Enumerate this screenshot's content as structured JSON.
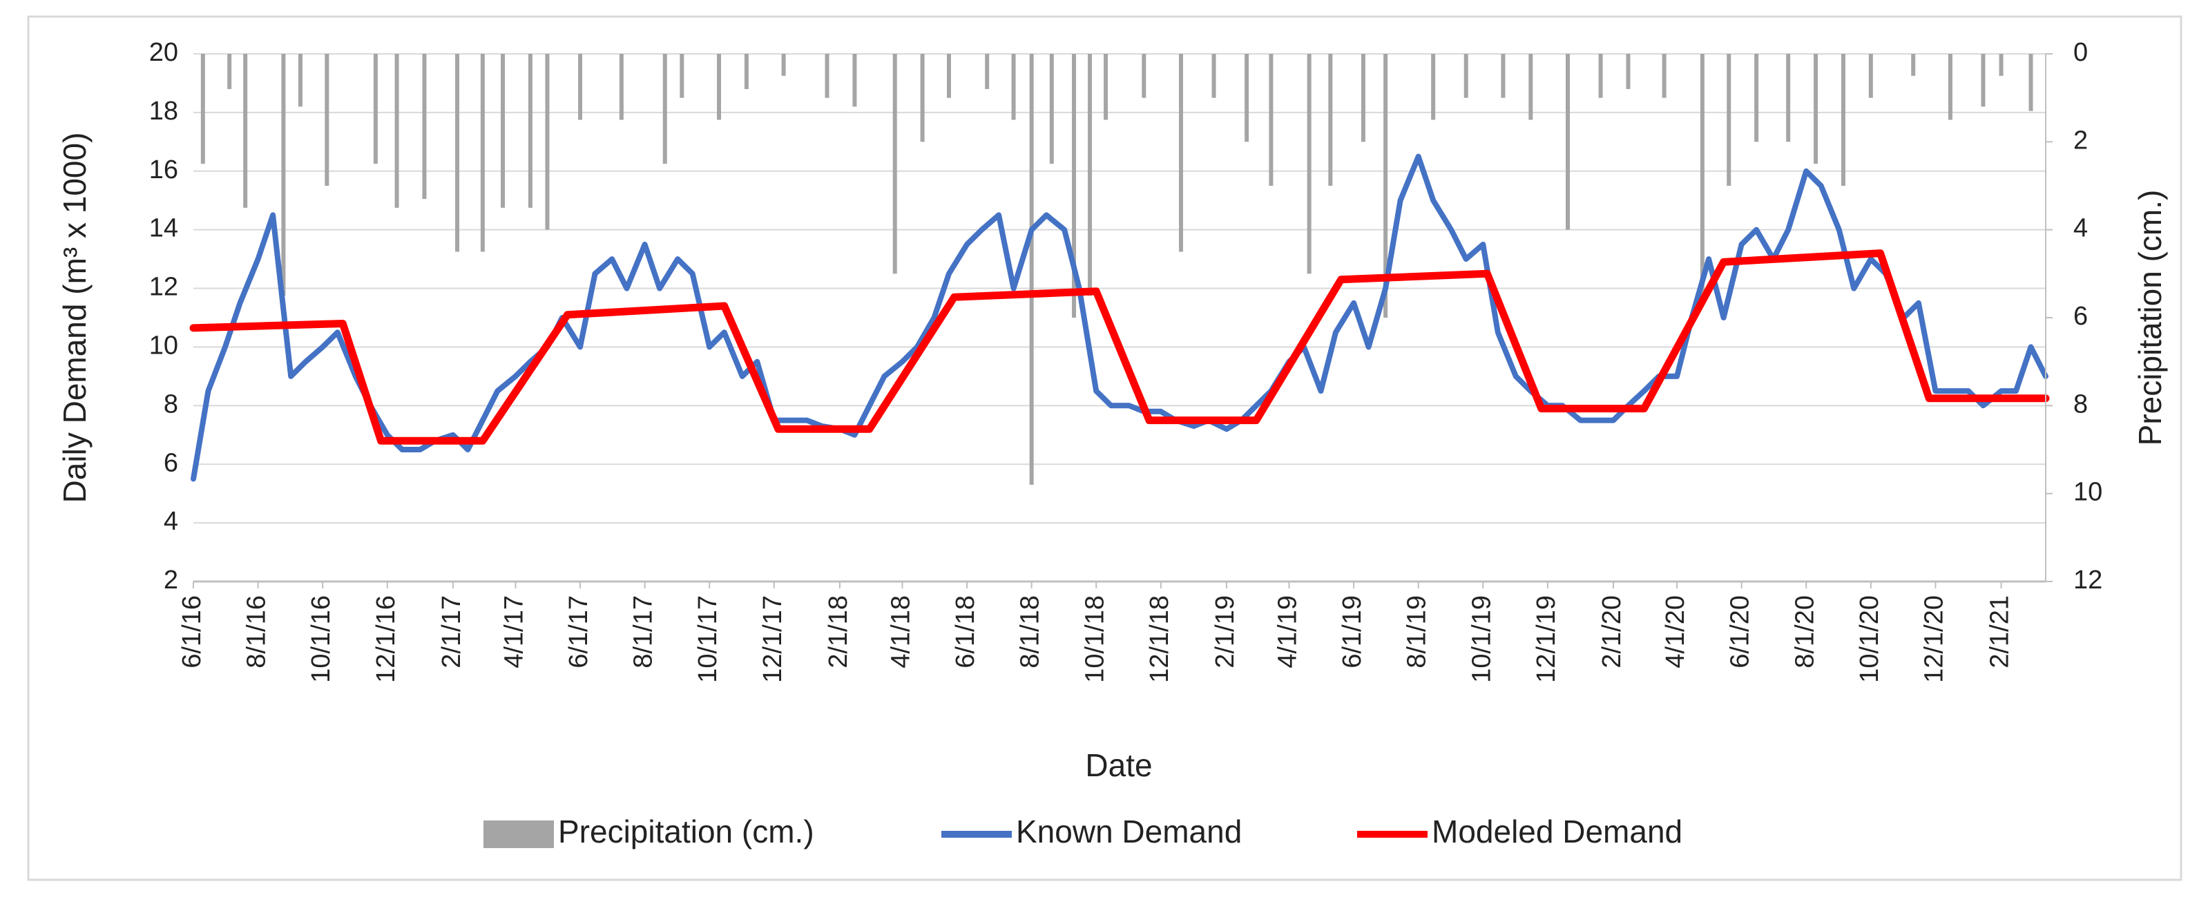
{
  "chart_data": {
    "type": "line",
    "x_label": "Date",
    "y_label": "Daily Demand (m³ x 1000)",
    "y2_label": "Precipitation (cm.)",
    "xlim": [
      "6/1/16",
      "3/15/21"
    ],
    "xticks": [
      "6/1/16",
      "8/1/16",
      "10/1/16",
      "12/1/16",
      "2/1/17",
      "4/1/17",
      "6/1/17",
      "8/1/17",
      "10/1/17",
      "12/1/17",
      "2/1/18",
      "4/1/18",
      "6/1/18",
      "8/1/18",
      "10/1/18",
      "12/1/18",
      "2/1/19",
      "4/1/19",
      "6/1/19",
      "8/1/19",
      "10/1/19",
      "12/1/19",
      "2/1/20",
      "4/1/20",
      "6/1/20",
      "8/1/20",
      "10/1/20",
      "12/1/20",
      "2/1/21"
    ],
    "ylim": [
      2,
      20
    ],
    "yticks": [
      2,
      4,
      6,
      8,
      10,
      12,
      14,
      16,
      18,
      20
    ],
    "y2lim": [
      12,
      0
    ],
    "y2ticks": [
      0,
      2,
      4,
      6,
      8,
      10,
      12
    ],
    "grid": true,
    "legend": "bottom",
    "series": [
      {
        "name": "Precipitation (cm.)",
        "type": "bar",
        "axis": "y2",
        "color": "#a5a5a5",
        "x": [
          "6/10/16",
          "7/5/16",
          "7/20/16",
          "8/25/16",
          "9/10/16",
          "10/5/16",
          "11/20/16",
          "12/10/16",
          "1/5/17",
          "2/5/17",
          "3/1/17",
          "3/20/17",
          "4/15/17",
          "5/1/17",
          "6/1/17",
          "7/10/17",
          "8/20/17",
          "9/5/17",
          "10/10/17",
          "11/5/17",
          "12/10/17",
          "1/20/18",
          "2/15/18",
          "3/25/18",
          "4/20/18",
          "5/15/18",
          "6/20/18",
          "7/15/18",
          "8/1/18",
          "8/20/18",
          "9/10/18",
          "9/25/18",
          "10/10/18",
          "11/15/18",
          "12/20/18",
          "1/20/19",
          "2/20/19",
          "3/15/19",
          "4/20/19",
          "5/10/19",
          "6/10/19",
          "7/1/19",
          "8/15/19",
          "9/15/19",
          "10/20/19",
          "11/15/19",
          "12/20/19",
          "1/20/20",
          "2/15/20",
          "3/20/20",
          "4/25/20",
          "5/20/20",
          "6/15/20",
          "7/15/20",
          "8/10/20",
          "9/5/20",
          "10/1/20",
          "11/10/20",
          "12/15/20",
          "1/15/21",
          "2/1/21",
          "3/1/21"
        ],
        "values": [
          2.5,
          0.8,
          3.5,
          5.5,
          1.2,
          3.0,
          2.5,
          3.5,
          3.3,
          4.5,
          4.5,
          3.5,
          3.5,
          4,
          1.5,
          1.5,
          2.5,
          1,
          1.5,
          0.8,
          0.5,
          1,
          1.2,
          5,
          2,
          1,
          0.8,
          1.5,
          9.8,
          2.5,
          6,
          5.5,
          1.5,
          1,
          4.5,
          1,
          2,
          3,
          5,
          3,
          2,
          6,
          1.5,
          1,
          1,
          1.5,
          4,
          1,
          0.8,
          1,
          5.5,
          3,
          2,
          2,
          2.5,
          3,
          1,
          0.5,
          1.5,
          1.2,
          0.5,
          1.3
        ]
      },
      {
        "name": "Known Demand",
        "type": "line",
        "axis": "y",
        "color": "#4472c4",
        "x": [
          "6/1/16",
          "6/15/16",
          "7/1/16",
          "7/15/16",
          "8/1/16",
          "8/15/16",
          "9/1/16",
          "9/15/16",
          "10/1/16",
          "10/15/16",
          "11/1/16",
          "11/15/16",
          "12/1/16",
          "12/15/16",
          "1/1/17",
          "1/15/17",
          "2/1/17",
          "2/15/17",
          "3/1/17",
          "3/15/17",
          "4/1/17",
          "4/15/17",
          "5/1/17",
          "5/15/17",
          "6/1/17",
          "6/15/17",
          "7/1/17",
          "7/15/17",
          "8/1/17",
          "8/15/17",
          "9/1/17",
          "9/15/17",
          "10/1/17",
          "10/15/17",
          "11/1/17",
          "11/15/17",
          "12/1/17",
          "12/15/17",
          "1/1/18",
          "1/15/18",
          "2/1/18",
          "2/15/18",
          "3/1/18",
          "3/15/18",
          "4/1/18",
          "4/15/18",
          "5/1/18",
          "5/15/18",
          "6/1/18",
          "6/15/18",
          "7/1/18",
          "7/15/18",
          "8/1/18",
          "8/15/18",
          "9/1/18",
          "9/15/18",
          "10/1/18",
          "10/15/18",
          "11/1/18",
          "11/15/18",
          "12/1/18",
          "12/15/18",
          "1/1/19",
          "1/15/19",
          "2/1/19",
          "2/15/19",
          "3/1/19",
          "3/15/19",
          "4/1/19",
          "4/15/19",
          "5/1/19",
          "5/15/19",
          "6/1/19",
          "6/15/19",
          "7/1/19",
          "7/15/19",
          "8/1/19",
          "8/15/19",
          "9/1/19",
          "9/15/19",
          "10/1/19",
          "10/15/19",
          "11/1/19",
          "11/15/19",
          "12/1/19",
          "12/15/19",
          "1/1/20",
          "1/15/20",
          "2/1/20",
          "2/15/20",
          "3/1/20",
          "3/15/20",
          "4/1/20",
          "4/15/20",
          "5/1/20",
          "5/15/20",
          "6/1/20",
          "6/15/20",
          "7/1/20",
          "7/15/20",
          "8/1/20",
          "8/15/20",
          "9/1/20",
          "9/15/20",
          "10/1/20",
          "10/15/20",
          "11/1/20",
          "11/15/20",
          "12/1/20",
          "12/15/20",
          "1/1/21",
          "1/15/21",
          "2/1/21",
          "2/15/21",
          "3/1/21",
          "3/15/21"
        ],
        "values": [
          5.5,
          8.5,
          10,
          11.5,
          13,
          14.5,
          9,
          9.5,
          10,
          10.5,
          9,
          8,
          7,
          6.5,
          6.5,
          6.8,
          7,
          6.5,
          7.5,
          8.5,
          9,
          9.5,
          10,
          11,
          10,
          12.5,
          13,
          12,
          13.5,
          12,
          13,
          12.5,
          10,
          10.5,
          9,
          9.5,
          7.5,
          7.5,
          7.5,
          7.3,
          7.2,
          7,
          8,
          9,
          9.5,
          10,
          11,
          12.5,
          13.5,
          14,
          14.5,
          12,
          14,
          14.5,
          14,
          12,
          8.5,
          8,
          8,
          7.8,
          7.8,
          7.5,
          7.3,
          7.5,
          7.2,
          7.5,
          8,
          8.5,
          9.5,
          10,
          8.5,
          10.5,
          11.5,
          10,
          12,
          15,
          16.5,
          15,
          14,
          13,
          13.5,
          10.5,
          9,
          8.5,
          8,
          8,
          7.5,
          7.5,
          7.5,
          8,
          8.5,
          9,
          9,
          11,
          13,
          11,
          13.5,
          14,
          13,
          14,
          16,
          15.5,
          14,
          12,
          13,
          12.5,
          11,
          11.5,
          8.5,
          8.5,
          8.5,
          8,
          8.5,
          8.5,
          10,
          9
        ]
      },
      {
        "name": "Modeled Demand",
        "type": "line",
        "axis": "y",
        "color": "#ff0000",
        "x": [
          "6/1/16",
          "10/20/16",
          "11/25/16",
          "3/1/17",
          "5/20/17",
          "10/15/17",
          "12/5/17",
          "3/1/18",
          "5/20/18",
          "10/1/18",
          "11/20/18",
          "3/1/19",
          "5/20/19",
          "10/5/19",
          "11/25/19",
          "3/1/20",
          "5/15/20",
          "10/10/20",
          "11/25/20",
          "3/15/21"
        ],
        "values": [
          10.65,
          10.8,
          6.8,
          6.8,
          11.1,
          11.4,
          7.2,
          7.2,
          11.7,
          11.9,
          7.5,
          7.5,
          12.3,
          12.5,
          7.9,
          7.9,
          12.9,
          13.2,
          8.25,
          8.25
        ]
      }
    ]
  }
}
